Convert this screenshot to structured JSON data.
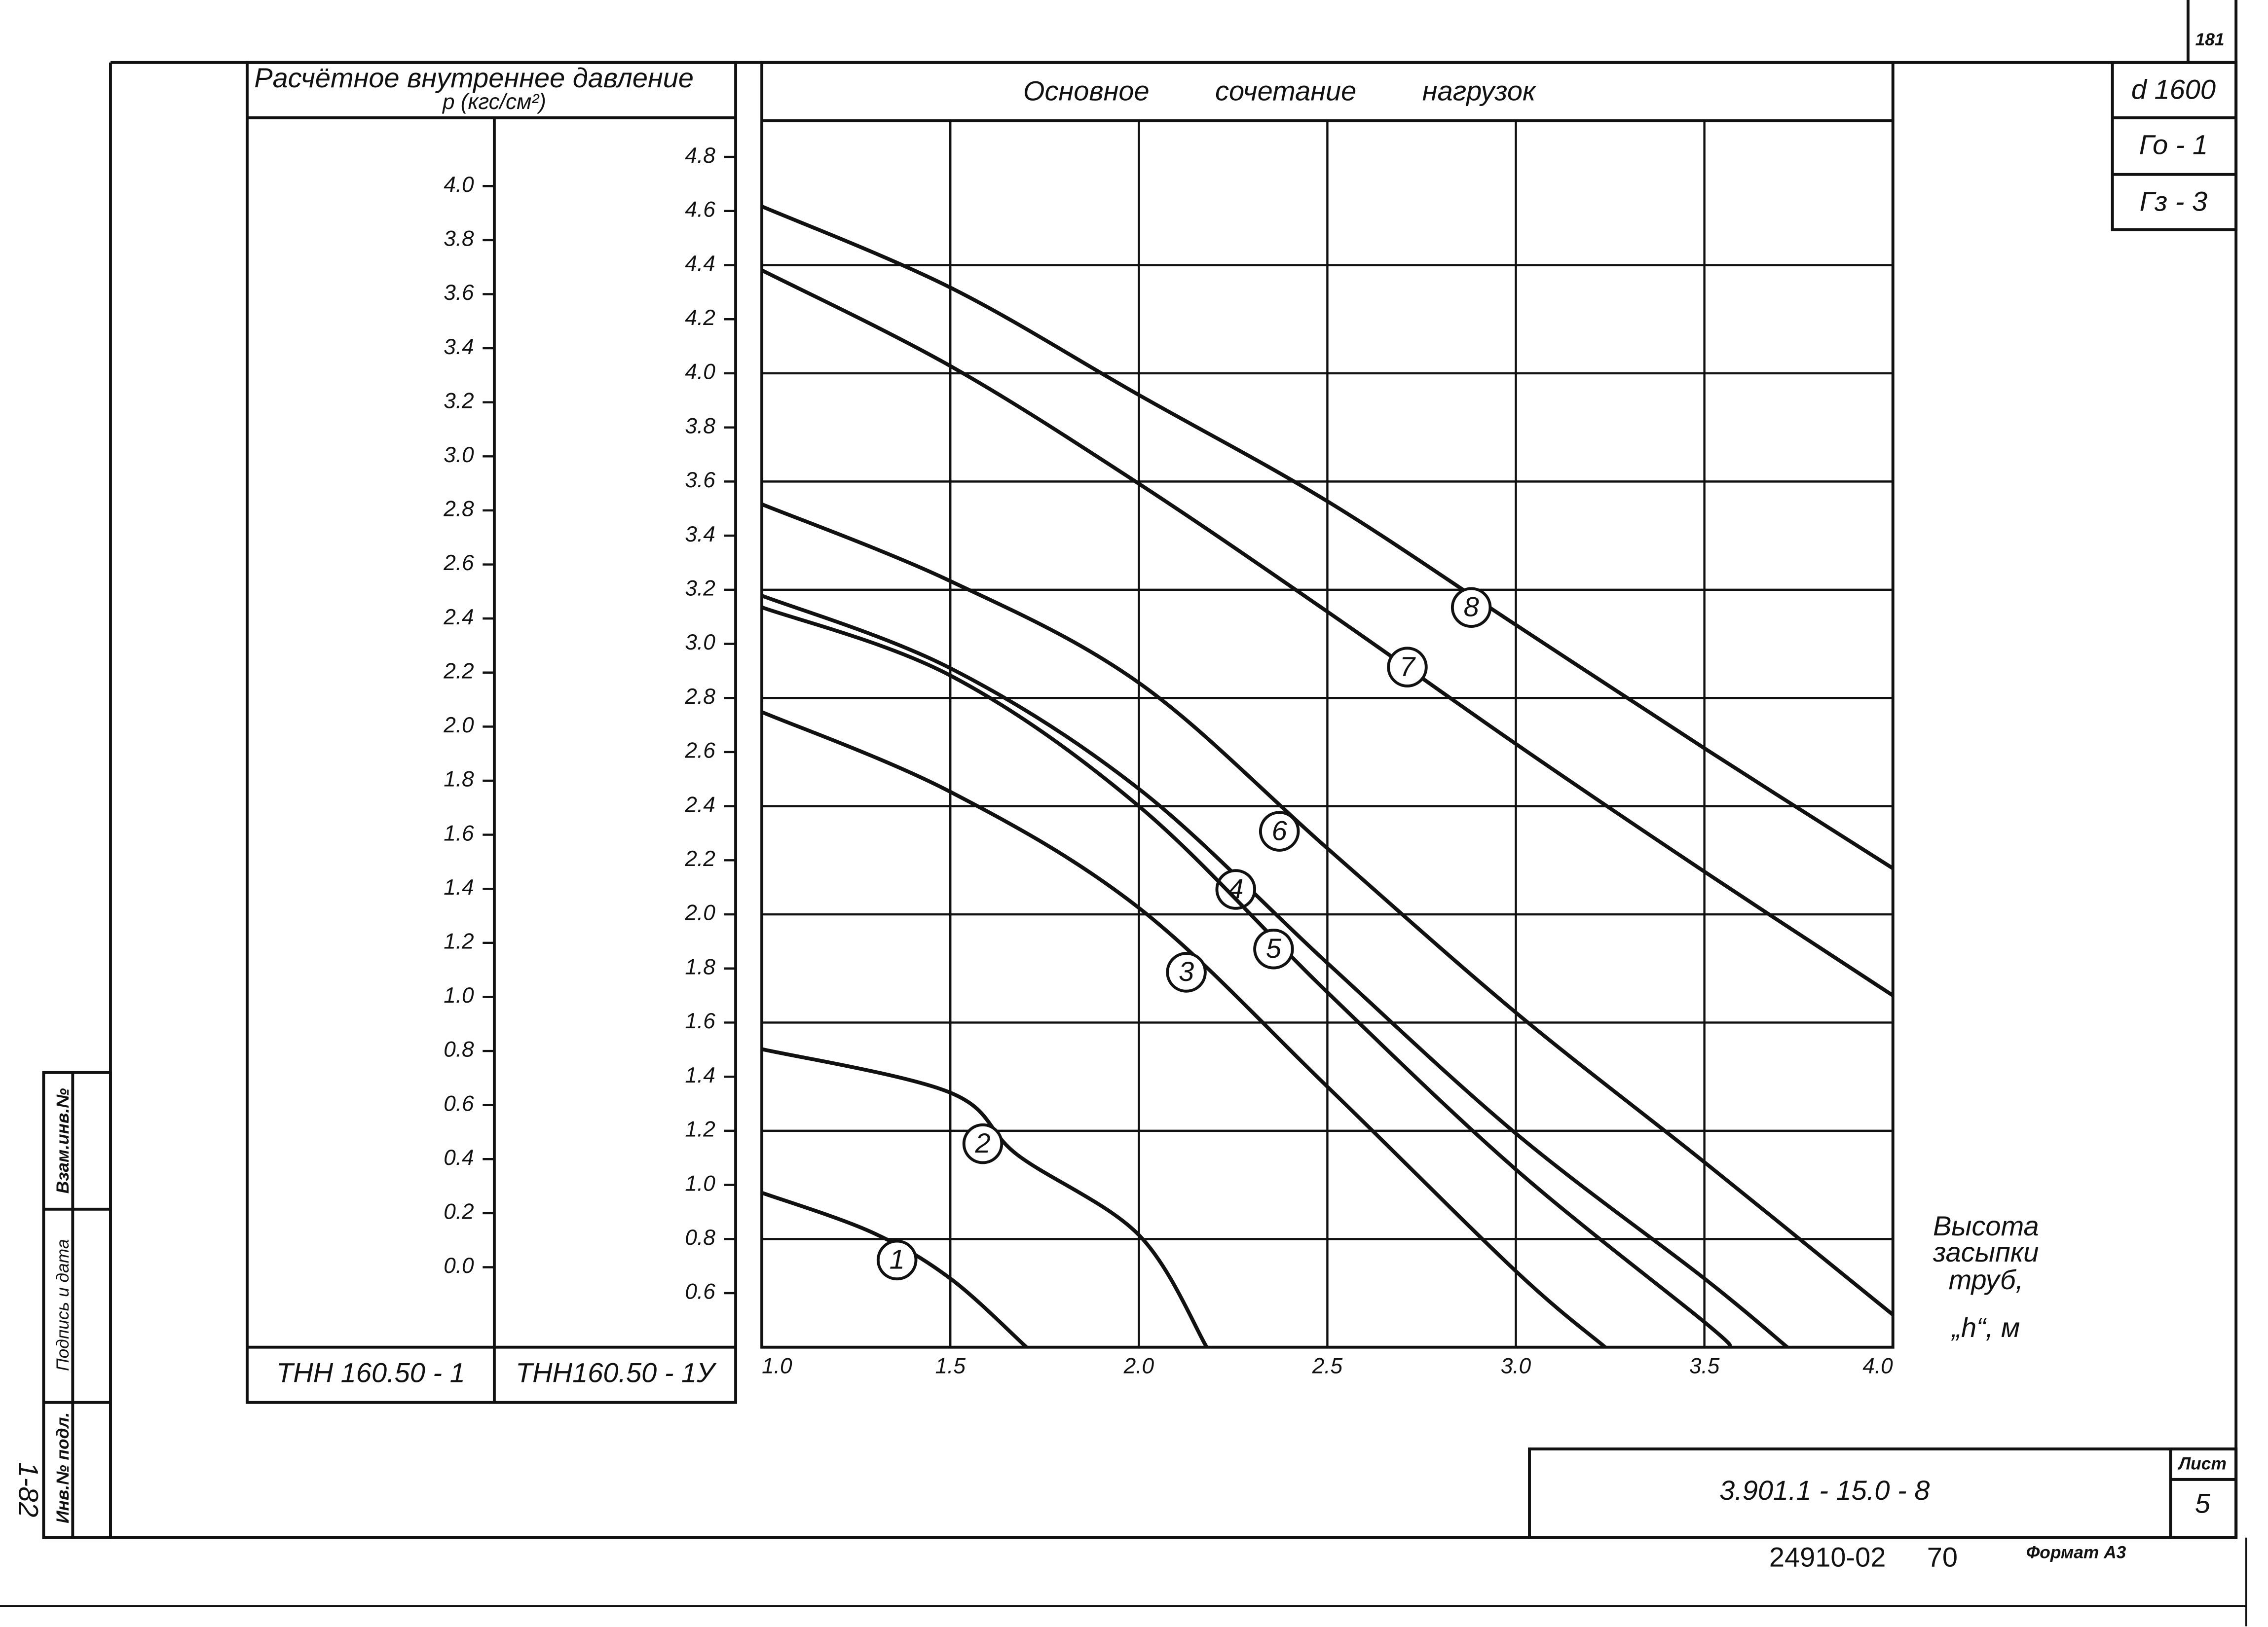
{
  "sheet_number_top": "181",
  "stamp": {
    "diameter": "d 1600",
    "g0": "Го - 1",
    "g3": "Гз - 3",
    "code": "3.901.1 - 15.0 - 8",
    "sheet_label": "Лист",
    "sheet": "5",
    "order": "24910-02",
    "order2": "70",
    "format": "Формат А3"
  },
  "side_strip": {
    "inv": "Инв.№ подл.",
    "sign": "Подпись и дата",
    "replace": "Взам.инв.№",
    "mark": "1-82"
  },
  "left_panel": {
    "header": "Расчётное внутреннее давление",
    "unit": "p (кгс/см²)",
    "col1": "ТНН 160.50 - 1",
    "col2": "ТНН160.50 - 1У"
  },
  "chart_data": {
    "type": "line",
    "title": "Основное сочетание нагрузок",
    "x_label": [
      "Высота",
      "засыпки",
      "труб,",
      "„h“, м"
    ],
    "xlim": [
      1,
      4
    ],
    "xticks": [
      {
        "value": 1,
        "label": "1.0"
      },
      1.5,
      {
        "value": 2,
        "label": "2.0"
      },
      2.5,
      {
        "value": 3,
        "label": "3.0"
      },
      3.5,
      {
        "value": 4,
        "label": "4.0"
      }
    ],
    "ylim": [
      0.4,
      4.934
    ],
    "yticks": [
      0.6,
      0.8,
      {
        "value": 1,
        "label": "1.0"
      },
      1.2,
      1.4,
      1.6,
      1.8,
      {
        "value": 2,
        "label": "2.0"
      },
      2.2,
      2.4,
      2.6,
      2.8,
      {
        "value": 3,
        "label": "3.0"
      },
      3.2,
      3.4,
      3.6,
      3.8,
      {
        "value": 4,
        "label": "4.0"
      },
      4.2,
      4.4,
      4.6,
      4.8
    ],
    "y2lim": [
      -0.296,
      4.242
    ],
    "y2ticks": [
      {
        "value": 0,
        "label": "0.0"
      },
      0.2,
      0.4,
      0.6,
      0.8,
      {
        "value": 1,
        "label": "1.0"
      },
      1.2,
      1.4,
      1.6,
      1.8,
      {
        "value": 2,
        "label": "2.0"
      },
      2.2,
      2.4,
      2.6,
      2.8,
      {
        "value": 3,
        "label": "3.0"
      },
      3.2,
      3.4,
      3.6,
      3.8,
      {
        "value": 4,
        "label": "4.0"
      }
    ],
    "grid": true,
    "color": "#111111",
    "series": [
      {
        "name": "1",
        "x": [
          1,
          1.29,
          1.5,
          1.702
        ],
        "values": [
          0.971,
          0.826,
          0.654,
          0.4
        ]
      },
      {
        "name": "2",
        "x": [
          1,
          1.5,
          1.679,
          2,
          2.18
        ],
        "values": [
          1.502,
          1.341,
          1.11,
          0.815,
          0.4
        ]
      },
      {
        "name": "3",
        "x": [
          1,
          1.5,
          2,
          2.5,
          3,
          3.237
        ],
        "values": [
          2.748,
          2.453,
          2.024,
          1.363,
          0.681,
          0.4
        ]
      },
      {
        "name": "4",
        "x": [
          1,
          1.5,
          2,
          2.5,
          3,
          3.5,
          3.72
        ],
        "values": [
          3.178,
          2.91,
          2.464,
          1.82,
          1.19,
          0.654,
          0.4
        ]
      },
      {
        "name": "5",
        "x": [
          1,
          1.5,
          2,
          2.5,
          3,
          3.5,
          3.57
        ],
        "values": [
          3.135,
          2.883,
          2.4,
          1.712,
          1.057,
          0.493,
          0.4
        ]
      },
      {
        "name": "6",
        "x": [
          1,
          1.5,
          2,
          2.5,
          3,
          3.5,
          4
        ],
        "values": [
          3.516,
          3.232,
          2.856,
          2.244,
          1.637,
          1.084,
          0.52
        ]
      },
      {
        "name": "7",
        "x": [
          1,
          1.5,
          2,
          2.5,
          3,
          3.5,
          4
        ],
        "values": [
          4.381,
          4.027,
          3.592,
          3.119,
          2.63,
          2.158,
          1.7
        ]
      },
      {
        "name": "8",
        "x": [
          1,
          1.5,
          2,
          2.5,
          3,
          3.5,
          4
        ],
        "values": [
          4.617,
          4.317,
          3.92,
          3.527,
          3.07,
          2.614,
          2.17
        ]
      }
    ]
  }
}
